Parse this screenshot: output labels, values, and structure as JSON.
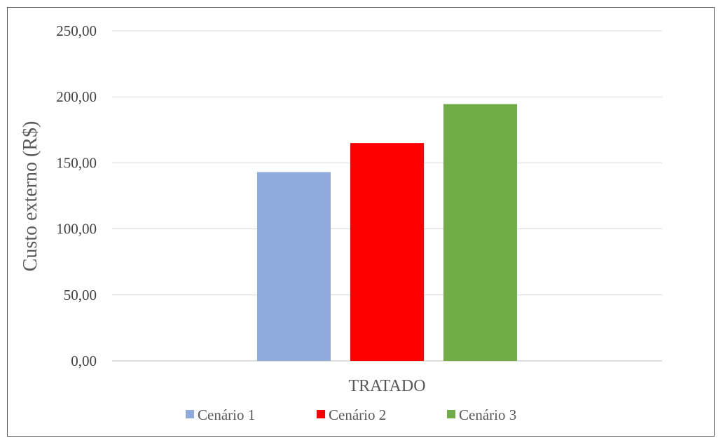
{
  "chart_data": {
    "type": "bar",
    "title": "",
    "xlabel": "",
    "ylabel": "Custo externo (R$)",
    "categories": [
      "TRATADO"
    ],
    "series": [
      {
        "name": "Cenário 1",
        "values": [
          143.0
        ],
        "color": "#8FAADC"
      },
      {
        "name": "Cenário 2",
        "values": [
          165.0
        ],
        "color": "#FF0000"
      },
      {
        "name": "Cenário 3",
        "values": [
          194.5
        ],
        "color": "#70AD47"
      }
    ],
    "ylim": [
      0,
      250
    ],
    "yticks": [
      0,
      50,
      100,
      150,
      200,
      250
    ],
    "ytick_labels": [
      "0,00",
      "50,00",
      "100,00",
      "150,00",
      "200,00",
      "250,00"
    ],
    "grid": true,
    "gridline_color": "#D9D9D9",
    "legend": "bottom"
  }
}
